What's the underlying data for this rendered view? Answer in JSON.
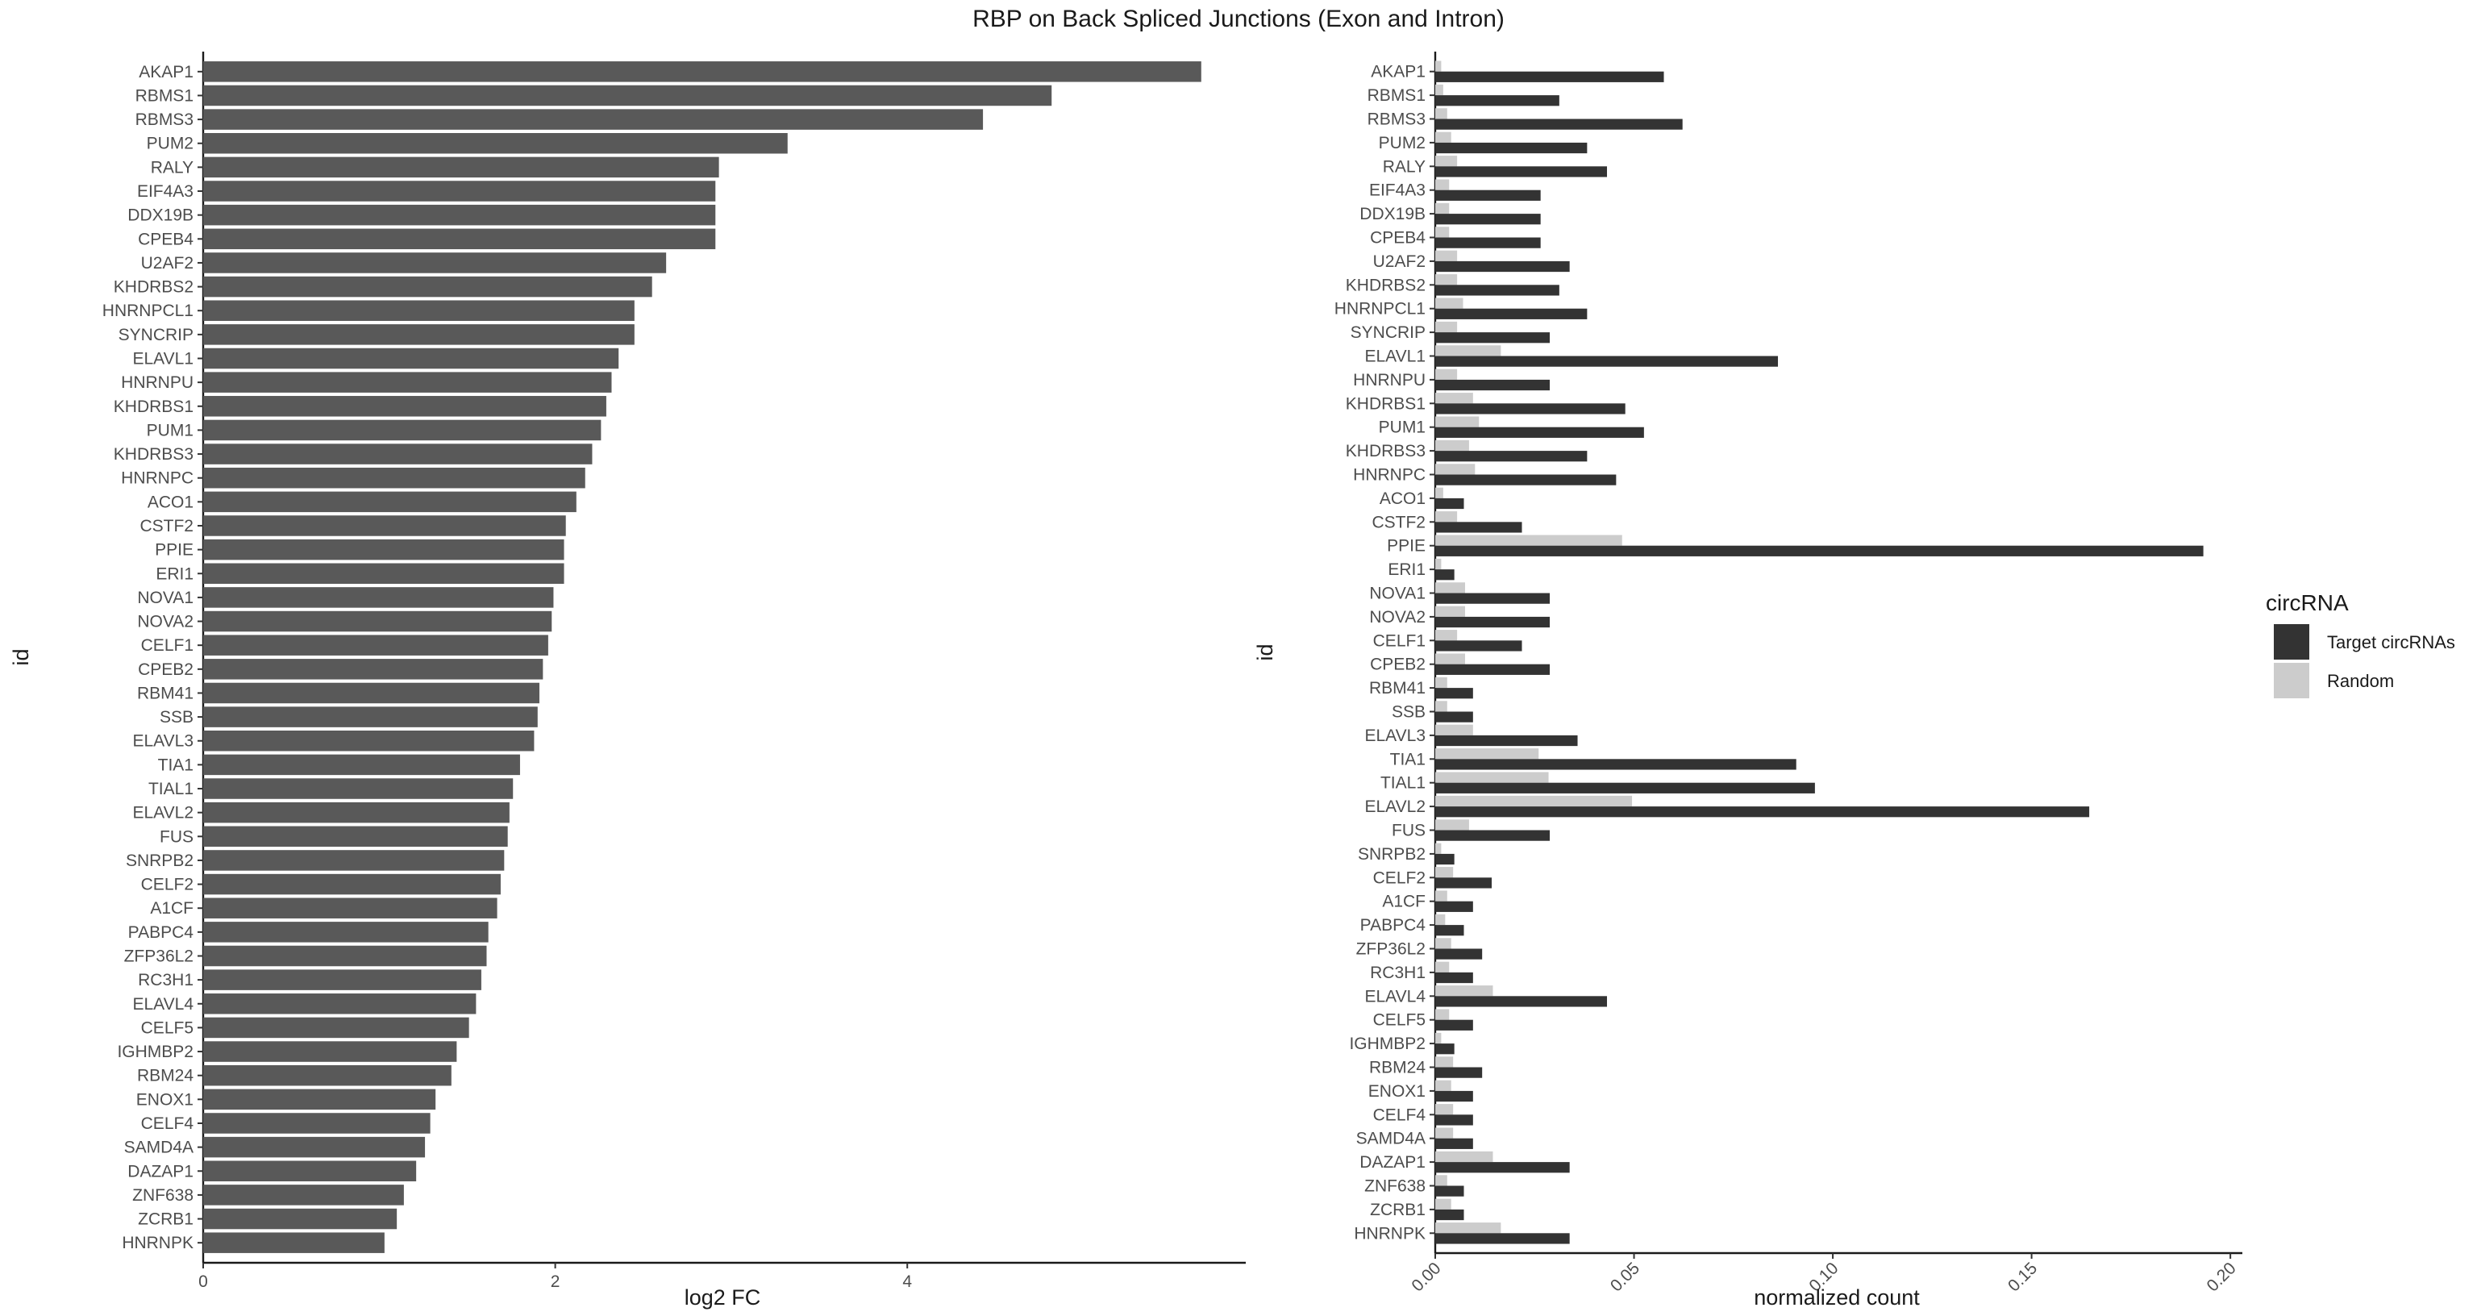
{
  "figure": {
    "title": "RBP on Back Spliced Junctions (Exon and Intron)"
  },
  "chart_data": [
    {
      "type": "bar",
      "orientation": "horizontal",
      "xlabel": "log2 FC",
      "ylabel": "id",
      "xlim": [
        0,
        5.9
      ],
      "xticks": [
        "0",
        "2",
        "4"
      ],
      "bar_color": "#595959",
      "grid": false,
      "categories": [
        "AKAP1",
        "RBMS1",
        "RBMS3",
        "PUM2",
        "RALY",
        "EIF4A3",
        "DDX19B",
        "CPEB4",
        "U2AF2",
        "KHDRBS2",
        "HNRNPCL1",
        "SYNCRIP",
        "ELAVL1",
        "HNRNPU",
        "KHDRBS1",
        "PUM1",
        "KHDRBS3",
        "HNRNPC",
        "ACO1",
        "CSTF2",
        "PPIE",
        "ERI1",
        "NOVA1",
        "NOVA2",
        "CELF1",
        "CPEB2",
        "RBM41",
        "SSB",
        "ELAVL3",
        "TIA1",
        "TIAL1",
        "ELAVL2",
        "FUS",
        "SNRPB2",
        "CELF2",
        "A1CF",
        "PABPC4",
        "ZFP36L2",
        "RC3H1",
        "ELAVL4",
        "CELF5",
        "IGHMBP2",
        "RBM24",
        "ENOX1",
        "CELF4",
        "SAMD4A",
        "DAZAP1",
        "ZNF638",
        "ZCRB1",
        "HNRNPK"
      ],
      "values": [
        5.67,
        4.82,
        4.43,
        3.32,
        2.93,
        2.91,
        2.91,
        2.91,
        2.63,
        2.55,
        2.45,
        2.45,
        2.36,
        2.32,
        2.29,
        2.26,
        2.21,
        2.17,
        2.12,
        2.06,
        2.05,
        2.05,
        1.99,
        1.98,
        1.96,
        1.93,
        1.91,
        1.9,
        1.88,
        1.8,
        1.76,
        1.74,
        1.73,
        1.71,
        1.69,
        1.67,
        1.62,
        1.61,
        1.58,
        1.55,
        1.51,
        1.44,
        1.41,
        1.32,
        1.29,
        1.26,
        1.21,
        1.14,
        1.1,
        1.03
      ]
    },
    {
      "type": "bar",
      "orientation": "horizontal",
      "xlabel": "normalized count",
      "ylabel": "id",
      "xlim": [
        0,
        0.202
      ],
      "xticks": [
        "0.00",
        "0.05",
        "0.10",
        "0.15",
        "0.20"
      ],
      "grid": false,
      "legend": {
        "title": "circRNA",
        "placement": "right"
      },
      "categories": [
        "AKAP1",
        "RBMS1",
        "RBMS3",
        "PUM2",
        "RALY",
        "EIF4A3",
        "DDX19B",
        "CPEB4",
        "U2AF2",
        "KHDRBS2",
        "HNRNPCL1",
        "SYNCRIP",
        "ELAVL1",
        "HNRNPU",
        "KHDRBS1",
        "PUM1",
        "KHDRBS3",
        "HNRNPC",
        "ACO1",
        "CSTF2",
        "PPIE",
        "ERI1",
        "NOVA1",
        "NOVA2",
        "CELF1",
        "CPEB2",
        "RBM41",
        "SSB",
        "ELAVL3",
        "TIA1",
        "TIAL1",
        "ELAVL2",
        "FUS",
        "SNRPB2",
        "CELF2",
        "A1CF",
        "PABPC4",
        "ZFP36L2",
        "RC3H1",
        "ELAVL4",
        "CELF5",
        "IGHMBP2",
        "RBM24",
        "ENOX1",
        "CELF4",
        "SAMD4A",
        "DAZAP1",
        "ZNF638",
        "ZCRB1",
        "HNRNPK"
      ],
      "series": [
        {
          "name": "Random",
          "color": "#cccccc",
          "values": [
            0.0015,
            0.002,
            0.003,
            0.004,
            0.0055,
            0.0035,
            0.0035,
            0.0035,
            0.0055,
            0.0055,
            0.007,
            0.0055,
            0.0165,
            0.0055,
            0.0095,
            0.011,
            0.0085,
            0.01,
            0.002,
            0.0055,
            0.047,
            0.0015,
            0.0075,
            0.0075,
            0.0055,
            0.0075,
            0.003,
            0.003,
            0.0095,
            0.026,
            0.0285,
            0.0495,
            0.0085,
            0.0015,
            0.0045,
            0.003,
            0.0025,
            0.004,
            0.0035,
            0.0145,
            0.0035,
            0.0015,
            0.0045,
            0.004,
            0.0045,
            0.0045,
            0.0145,
            0.003,
            0.004,
            0.0165
          ]
        },
        {
          "name": "Target circRNAs",
          "color": "#333333",
          "values": [
            0.0575,
            0.0312,
            0.0622,
            0.0382,
            0.0432,
            0.0265,
            0.0265,
            0.0265,
            0.0338,
            0.0312,
            0.0382,
            0.0288,
            0.0862,
            0.0288,
            0.0478,
            0.0525,
            0.0382,
            0.0455,
            0.0072,
            0.0218,
            0.1932,
            0.0048,
            0.0288,
            0.0288,
            0.0218,
            0.0288,
            0.0095,
            0.0095,
            0.0358,
            0.0908,
            0.0955,
            0.1645,
            0.0288,
            0.0048,
            0.0142,
            0.0095,
            0.0072,
            0.0118,
            0.0095,
            0.0432,
            0.0095,
            0.0048,
            0.0118,
            0.0095,
            0.0095,
            0.0095,
            0.0338,
            0.0072,
            0.0072,
            0.0338
          ]
        }
      ]
    }
  ]
}
